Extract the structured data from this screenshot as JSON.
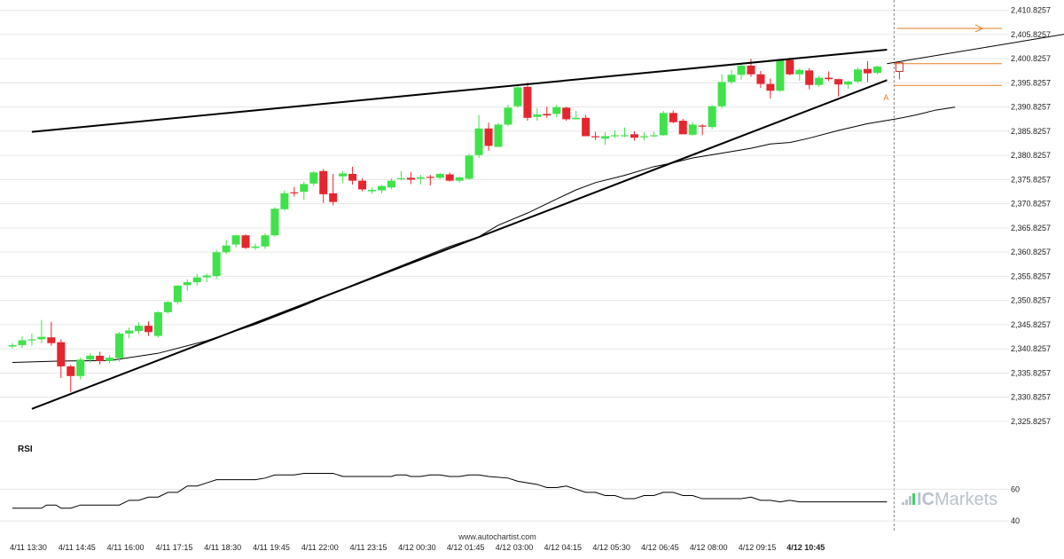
{
  "chart_data": {
    "type": "candlestick",
    "price_axis": {
      "ylim": [
        2322.5,
        2411.5
      ],
      "tick_labels": [
        "2,410.8257",
        "2,405.8257",
        "2,400.8257",
        "2,395.8257",
        "2,390.8257",
        "2,385.8257",
        "2,380.8257",
        "2,375.8257",
        "2,370.8257",
        "2,365.8257",
        "2,360.8257",
        "2,355.8257",
        "2,350.8257",
        "2,345.8257",
        "2,340.8257",
        "2,335.8257",
        "2,330.8257",
        "2,325.8257"
      ],
      "tick_values": [
        2410.8257,
        2405.8257,
        2400.8257,
        2395.8257,
        2390.8257,
        2385.8257,
        2380.8257,
        2375.8257,
        2370.8257,
        2365.8257,
        2360.8257,
        2355.8257,
        2350.8257,
        2345.8257,
        2340.8257,
        2335.8257,
        2330.8257,
        2325.8257
      ]
    },
    "time_axis": {
      "labels": [
        "4/11 13:30",
        "4/11 14:45",
        "4/11 16:00",
        "4/11 17:15",
        "4/11 18:30",
        "4/11 19:45",
        "4/11 22:00",
        "4/11 23:15",
        "4/12 00:30",
        "4/12 01:45",
        "4/12 03:00",
        "4/12 04:15",
        "4/12 05:30",
        "4/12 06:45",
        "4/12 08:00",
        "4/12 09:15",
        "4/12 10:45"
      ],
      "label_index": [
        0,
        5,
        10,
        15,
        20,
        25,
        30,
        35,
        40,
        45,
        50,
        55,
        60,
        65,
        70,
        75,
        80
      ],
      "current_label": "4/12 10:45"
    },
    "candles": [
      [
        2341.3,
        2342.0,
        2340.9,
        2341.6
      ],
      [
        2341.6,
        2343.4,
        2341.0,
        2342.6
      ],
      [
        2342.6,
        2344.0,
        2341.5,
        2342.8
      ],
      [
        2342.8,
        2346.8,
        2342.0,
        2343.3
      ],
      [
        2343.2,
        2346.4,
        2341.5,
        2342.0
      ],
      [
        2342.2,
        2342.8,
        2334.8,
        2337.2
      ],
      [
        2337.2,
        2337.5,
        2331.9,
        2335.2
      ],
      [
        2335.2,
        2339.0,
        2334.5,
        2338.6
      ],
      [
        2338.6,
        2339.9,
        2338.0,
        2339.4
      ],
      [
        2339.4,
        2340.2,
        2337.6,
        2338.3
      ],
      [
        2338.3,
        2339.5,
        2337.9,
        2339.0
      ],
      [
        2338.9,
        2344.3,
        2338.2,
        2344.0
      ],
      [
        2344.0,
        2345.2,
        2343.0,
        2344.6
      ],
      [
        2344.5,
        2346.3,
        2343.9,
        2345.6
      ],
      [
        2345.6,
        2346.5,
        2343.5,
        2344.3
      ],
      [
        2343.5,
        2348.6,
        2343.2,
        2348.4
      ],
      [
        2348.4,
        2350.7,
        2348.1,
        2350.5
      ],
      [
        2350.5,
        2354.0,
        2350.0,
        2353.9
      ],
      [
        2354.0,
        2355.2,
        2352.8,
        2354.6
      ],
      [
        2354.6,
        2356.3,
        2353.9,
        2355.6
      ],
      [
        2355.6,
        2356.4,
        2354.6,
        2356.0
      ],
      [
        2355.9,
        2361.3,
        2355.3,
        2360.8
      ],
      [
        2360.8,
        2363.3,
        2360.4,
        2362.2
      ],
      [
        2362.4,
        2364.4,
        2361.8,
        2364.3
      ],
      [
        2364.3,
        2364.5,
        2361.5,
        2361.7
      ],
      [
        2361.7,
        2362.6,
        2361.3,
        2362.0
      ],
      [
        2362.0,
        2364.7,
        2361.5,
        2364.3
      ],
      [
        2364.3,
        2370.1,
        2364.0,
        2369.8
      ],
      [
        2369.7,
        2373.6,
        2369.4,
        2373.0
      ],
      [
        2373.2,
        2374.3,
        2372.3,
        2373.0
      ],
      [
        2373.3,
        2375.4,
        2371.6,
        2374.9
      ],
      [
        2375.0,
        2377.6,
        2374.5,
        2377.3
      ],
      [
        2377.6,
        2378.0,
        2371.0,
        2372.8
      ],
      [
        2373.0,
        2377.0,
        2370.5,
        2371.2
      ],
      [
        2376.5,
        2377.6,
        2375.1,
        2377.1
      ],
      [
        2377.0,
        2378.5,
        2374.8,
        2375.6
      ],
      [
        2375.6,
        2376.1,
        2373.4,
        2373.8
      ],
      [
        2373.4,
        2374.2,
        2372.9,
        2373.7
      ],
      [
        2373.6,
        2374.7,
        2373.0,
        2374.5
      ],
      [
        2374.2,
        2376.1,
        2373.8,
        2375.6
      ],
      [
        2376.0,
        2377.6,
        2375.7,
        2376.1
      ],
      [
        2376.2,
        2377.4,
        2374.9,
        2375.8
      ],
      [
        2376.0,
        2376.8,
        2374.8,
        2376.3
      ],
      [
        2376.4,
        2376.8,
        2374.6,
        2376.2
      ],
      [
        2376.2,
        2377.2,
        2375.9,
        2377.0
      ],
      [
        2376.9,
        2377.3,
        2375.4,
        2375.6
      ],
      [
        2375.6,
        2376.4,
        2375.2,
        2376.3
      ],
      [
        2376.0,
        2381.2,
        2375.8,
        2380.8
      ],
      [
        2380.9,
        2389.2,
        2380.3,
        2386.4
      ],
      [
        2386.4,
        2387.6,
        2381.8,
        2382.8
      ],
      [
        2382.6,
        2387.5,
        2382.5,
        2387.2
      ],
      [
        2387.2,
        2391.3,
        2386.9,
        2390.7
      ],
      [
        2391.0,
        2395.6,
        2390.7,
        2394.9
      ],
      [
        2395.0,
        2395.9,
        2388.0,
        2388.6
      ],
      [
        2388.8,
        2390.6,
        2388.0,
        2389.3
      ],
      [
        2389.4,
        2390.9,
        2388.6,
        2389.1
      ],
      [
        2389.4,
        2391.3,
        2388.7,
        2390.8
      ],
      [
        2390.7,
        2390.9,
        2388.0,
        2388.3
      ],
      [
        2388.3,
        2390.0,
        2388.3,
        2388.6
      ],
      [
        2388.6,
        2389.2,
        2384.8,
        2384.8
      ],
      [
        2384.8,
        2385.7,
        2384.0,
        2384.6
      ],
      [
        2384.3,
        2385.6,
        2383.0,
        2384.8
      ],
      [
        2384.8,
        2386.0,
        2384.4,
        2385.0
      ],
      [
        2384.9,
        2386.6,
        2384.6,
        2385.0
      ],
      [
        2385.2,
        2385.8,
        2383.9,
        2384.5
      ],
      [
        2384.6,
        2385.6,
        2383.9,
        2384.8
      ],
      [
        2384.8,
        2385.7,
        2384.6,
        2385.0
      ],
      [
        2385.0,
        2390.0,
        2384.9,
        2389.6
      ],
      [
        2389.6,
        2390.1,
        2387.5,
        2387.7
      ],
      [
        2388.0,
        2388.4,
        2385.2,
        2385.2
      ],
      [
        2385.1,
        2387.7,
        2385.0,
        2387.2
      ],
      [
        2387.0,
        2387.3,
        2385.0,
        2386.9
      ],
      [
        2386.7,
        2391.2,
        2386.3,
        2391.0
      ],
      [
        2391.0,
        2397.6,
        2390.5,
        2396.0
      ],
      [
        2396.0,
        2398.5,
        2395.6,
        2397.5
      ],
      [
        2397.5,
        2399.8,
        2396.5,
        2399.4
      ],
      [
        2399.4,
        2400.8,
        2397.1,
        2397.6
      ],
      [
        2397.6,
        2398.3,
        2394.8,
        2395.6
      ],
      [
        2395.6,
        2396.7,
        2392.6,
        2394.2
      ],
      [
        2394.2,
        2400.8,
        2394.0,
        2400.5
      ],
      [
        2400.6,
        2401.0,
        2397.4,
        2397.6
      ],
      [
        2397.6,
        2398.8,
        2396.3,
        2398.5
      ],
      [
        2398.4,
        2398.9,
        2394.5,
        2395.4
      ],
      [
        2395.4,
        2397.3,
        2395.0,
        2396.9
      ],
      [
        2396.9,
        2398.2,
        2396.2,
        2396.6
      ],
      [
        2396.6,
        2396.7,
        2393.0,
        2395.5
      ],
      [
        2395.5,
        2396.3,
        2394.6,
        2396.1
      ],
      [
        2396.1,
        2399.0,
        2395.8,
        2398.6
      ],
      [
        2398.7,
        2400.3,
        2396.0,
        2397.8
      ],
      [
        2397.9,
        2399.4,
        2397.6,
        2399.2
      ]
    ],
    "moving_average": [
      [
        0,
        2338.0
      ],
      [
        5,
        2338.3
      ],
      [
        10,
        2338.4
      ],
      [
        15,
        2339.9
      ],
      [
        20,
        2342.5
      ],
      [
        25,
        2345.9
      ],
      [
        30,
        2349.8
      ],
      [
        35,
        2354.0
      ],
      [
        40,
        2358.0
      ],
      [
        45,
        2362.0
      ],
      [
        48,
        2364.0
      ],
      [
        50,
        2366.4
      ],
      [
        53,
        2368.9
      ],
      [
        56,
        2371.8
      ],
      [
        58,
        2373.7
      ],
      [
        60,
        2375.2
      ],
      [
        63,
        2376.7
      ],
      [
        66,
        2378.5
      ],
      [
        68,
        2379.3
      ],
      [
        70,
        2380.3
      ],
      [
        73,
        2381.3
      ],
      [
        76,
        2382.3
      ],
      [
        78,
        2383.2
      ],
      [
        80,
        2383.5
      ],
      [
        82,
        2384.4
      ],
      [
        85,
        2386.0
      ],
      [
        88,
        2387.4
      ],
      [
        91,
        2388.4
      ],
      [
        93,
        2389.2
      ],
      [
        95,
        2390.2
      ],
      [
        97,
        2390.8
      ]
    ],
    "trendlines": [
      {
        "role": "resistance",
        "from": [
          2,
          2385.7
        ],
        "to": [
          90,
          2402.7
        ]
      },
      {
        "role": "support",
        "from": [
          2,
          2328.4
        ],
        "to": [
          90,
          2396.4
        ]
      },
      {
        "role": "projection",
        "from": [
          90,
          2399.8
        ],
        "to": [
          111,
          2406.8
        ]
      }
    ],
    "horizontal_levels": [
      2407.1,
      2399.8,
      2395.3
    ],
    "forecast_box": {
      "top": 2400.0,
      "bottom": 2398.2
    },
    "point_marker": {
      "index": 90,
      "value": 2394.1,
      "label": "A"
    },
    "current_index": 90,
    "rsi": {
      "label": "RSI",
      "tick_labels": [
        "60",
        "40"
      ],
      "tick_values": [
        60,
        40
      ],
      "ylim": [
        35,
        82
      ],
      "values": [
        48,
        48,
        48,
        48,
        50,
        50,
        48,
        48,
        50,
        50,
        50,
        50,
        50,
        53,
        53,
        55,
        55,
        58,
        58,
        60,
        62,
        62,
        64,
        66,
        66,
        66,
        66,
        66,
        67,
        69,
        69,
        69,
        70,
        70,
        70,
        70,
        68,
        68,
        68,
        68,
        68,
        68,
        69,
        69,
        68,
        68,
        69,
        69,
        68,
        68,
        69,
        69,
        68,
        67,
        65,
        63,
        61,
        61,
        62,
        60,
        58,
        58,
        56,
        56,
        54,
        54,
        56,
        56,
        58,
        58,
        56,
        56,
        54,
        54,
        54,
        54,
        54,
        55,
        53,
        53,
        52,
        53,
        52,
        52,
        52,
        52,
        52,
        52,
        52,
        52,
        52
      ],
      "cols": [
        0,
        1,
        2,
        3,
        3.5,
        4.5,
        5,
        6,
        7,
        8,
        9,
        10,
        11,
        12,
        13,
        14,
        15,
        16,
        17,
        17.5,
        18,
        19,
        20,
        21,
        22,
        23,
        24,
        25,
        26,
        27,
        28,
        29,
        30,
        31,
        32,
        33,
        34,
        35,
        36,
        37,
        38,
        39,
        39.5,
        40.5,
        41,
        42,
        43,
        44,
        45,
        46,
        47,
        48,
        49,
        51,
        52,
        54,
        55,
        56,
        57,
        58,
        59,
        60,
        61,
        62,
        63,
        64,
        65,
        66,
        67,
        68,
        69,
        70,
        71,
        72,
        73,
        74,
        75,
        76,
        77,
        78,
        79,
        80,
        81,
        82,
        83,
        84,
        85,
        86,
        87,
        88,
        90
      ]
    },
    "colors": {
      "bull": "#3fe24a",
      "bear": "#e5262e",
      "trend": "#000000",
      "ma": "#000000",
      "level": "#e67e22",
      "forecast": "#c0392b",
      "grid": "#e6e6e6",
      "current_line": "#888888",
      "watermark": "#b9c2cb"
    }
  },
  "footer": {
    "source": "www.autochartist.com"
  },
  "watermark": {
    "icon_name": "chart-bars-icon",
    "part1": "IC",
    "part2": "Markets"
  }
}
